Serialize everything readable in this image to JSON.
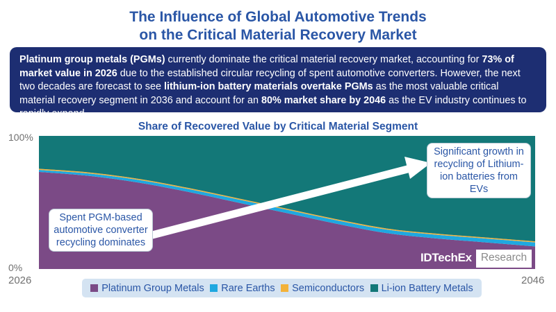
{
  "title_line1": "The Influence of Global Automotive Trends",
  "title_line2": "on the Critical Material Recovery Market",
  "summary": {
    "p1_bold": "Platinum group metals (PGMs)",
    "p2": " currently dominate the critical material recovery market, accounting for ",
    "p3_bold": "73% of market value in 2026",
    "p4": " due to the established circular recycling of spent automotive converters. However, the next two decades are forecast to see ",
    "p5_bold": "lithium-ion battery materials overtake PGMs",
    "p6": " as the most valuable critical material recovery segment in 2036 and account for an ",
    "p7_bold": "80% market share by 2046",
    "p8": " as the EV industry continues to rapidly expand."
  },
  "callouts": {
    "left": "Spent PGM-based automotive converter recycling dominates",
    "right": "Significant growth in recycling of Lithium-ion batteries from EVs"
  },
  "brand": {
    "name": "IDTechEx",
    "sub": "Research"
  },
  "colors": {
    "pgm": "#7b4a86",
    "rare_earths": "#1fa8e0",
    "semiconductors": "#f3b23a",
    "li_ion": "#137878",
    "title": "#2a56a6",
    "summary_bg": "#1d2e72"
  },
  "chart_data": {
    "type": "area",
    "stacked": true,
    "title": "Share of Recovered Value by Critical Material Segment",
    "x": [
      2026,
      2028,
      2030,
      2032,
      2034,
      2036,
      2038,
      2040,
      2042,
      2044,
      2046
    ],
    "xtick_labels": [
      "2026",
      "2046"
    ],
    "ytick_labels": [
      "100%",
      "0%"
    ],
    "ylim": [
      0,
      100
    ],
    "series": [
      {
        "name": "Platinum Group Metals",
        "values": [
          73,
          70,
          65,
          58,
          50,
          42,
          34,
          27,
          23,
          20,
          17
        ]
      },
      {
        "name": "Rare Earths",
        "values": [
          1.5,
          1.8,
          2,
          2.2,
          2.4,
          2.5,
          2.6,
          2.7,
          2.8,
          2.9,
          3
        ]
      },
      {
        "name": "Semiconductors",
        "values": [
          0.8,
          0.8,
          0.8,
          0.8,
          0.8,
          0.8,
          0.8,
          0.8,
          0.8,
          0.8,
          0.8
        ]
      },
      {
        "name": "Li-ion Battery Metals",
        "values": [
          24.7,
          27.4,
          32.2,
          39,
          46.8,
          54.7,
          62.6,
          69.5,
          73.4,
          76.3,
          79.2
        ]
      }
    ]
  }
}
